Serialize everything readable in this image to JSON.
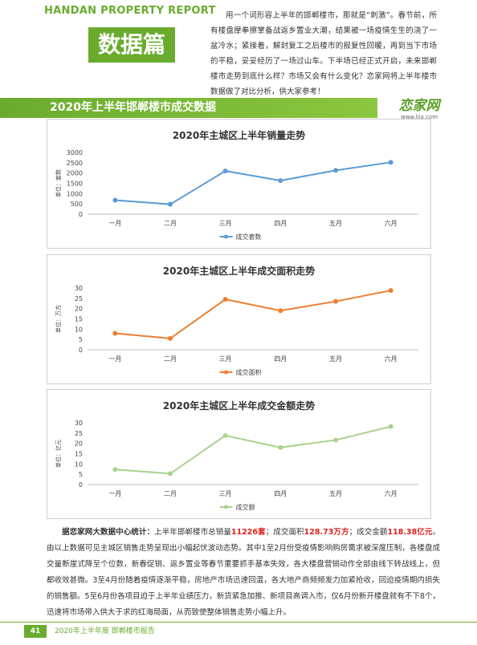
{
  "header": {
    "brand": "HANDAN PROPERTY REPORT",
    "badge": "数据篇"
  },
  "intro": "用一个词形容上半年的邯郸楼市，那就是“刺激”。春节前，所有楼盘摩拳擦掌备战返乡置业大潮，结果被一场疫情生生的浇了一盆冷水；紧接着，解封复工之后楼市的报复性回暖，再到当下市场的平稳，妥妥经历了一场过山车。下半场已经正式开启，未来邯郸楼市走势到底什么样？市场又会有什么变化？恋家网将上半年楼市数据做了对比分析，供大家参考！",
  "section": {
    "title": "2020年上半年邯郸楼市成交数据",
    "logo": "恋家网",
    "logo_url": "www.ljia.com"
  },
  "chart_data": [
    {
      "type": "line",
      "title": "2020年主城区上半年销量走势",
      "y_label": "单位：套数",
      "categories": [
        "一月",
        "二月",
        "三月",
        "四月",
        "五月",
        "六月"
      ],
      "series": [
        {
          "name": "成交套数",
          "color": "#5b9bd5",
          "values": [
            680,
            480,
            2100,
            1630,
            2130,
            2520
          ]
        }
      ],
      "ylim": [
        0,
        3000
      ],
      "yticks": [
        0,
        500,
        1000,
        1500,
        2000,
        2500,
        3000
      ],
      "grid": false
    },
    {
      "type": "line",
      "title": "2020年主城区上半年成交面积走势",
      "y_label": "单位：万方",
      "categories": [
        "一月",
        "二月",
        "三月",
        "四月",
        "五月",
        "六月"
      ],
      "series": [
        {
          "name": "成交面积",
          "color": "#ed7d31",
          "values": [
            8,
            5.5,
            24.5,
            19,
            23.5,
            28.8
          ]
        }
      ],
      "ylim": [
        0,
        30
      ],
      "yticks": [
        0,
        5,
        10,
        15,
        20,
        25,
        30
      ],
      "grid": false
    },
    {
      "type": "line",
      "title": "2020年主城区上半年成交金额走势",
      "y_label": "单位：亿元",
      "categories": [
        "一月",
        "二月",
        "三月",
        "四月",
        "五月",
        "六月"
      ],
      "series": [
        {
          "name": "成交额",
          "color": "#a9d18e",
          "values": [
            7.3,
            5.3,
            23.8,
            18,
            21.6,
            28.2
          ]
        }
      ],
      "ylim": [
        0,
        30
      ],
      "yticks": [
        0,
        5,
        10,
        15,
        20,
        25,
        30
      ],
      "grid": false
    }
  ],
  "summary": [
    "据恋家网大数据中心统计：",
    "上半年邯郸楼市总销量",
    "11226套",
    "；成交面积",
    "128.73万方",
    "；成交金额",
    "118.38亿元",
    "。由以上数据可见主城区销售走势呈现出小幅起伏波动态势。其中1至2月份受疫情影响购房需求被深度压制，各楼盘成交量断崖式降至个位数，新春促销、返乡置业等春节重要抓手基本失效，各大楼盘营销动作全部由线下转战线上，但都收效甚微。3至4月份随着疫情逐渐平稳，房地产市场迅速回温，各大地产商频频发力加紧抢收，回迫疫情期内损失的销售额。5至6月份各项目迫于上半年业绩压力，新货紧急加推、新项目高调入市，仅6月份新开楼盘就有不下8个，迅速将市场带入供大于求的红海局面，从而致使整体销售走势小幅上升。"
  ],
  "footer": {
    "page": "41",
    "text": "2020年上半年度 邯郸楼市报告"
  }
}
